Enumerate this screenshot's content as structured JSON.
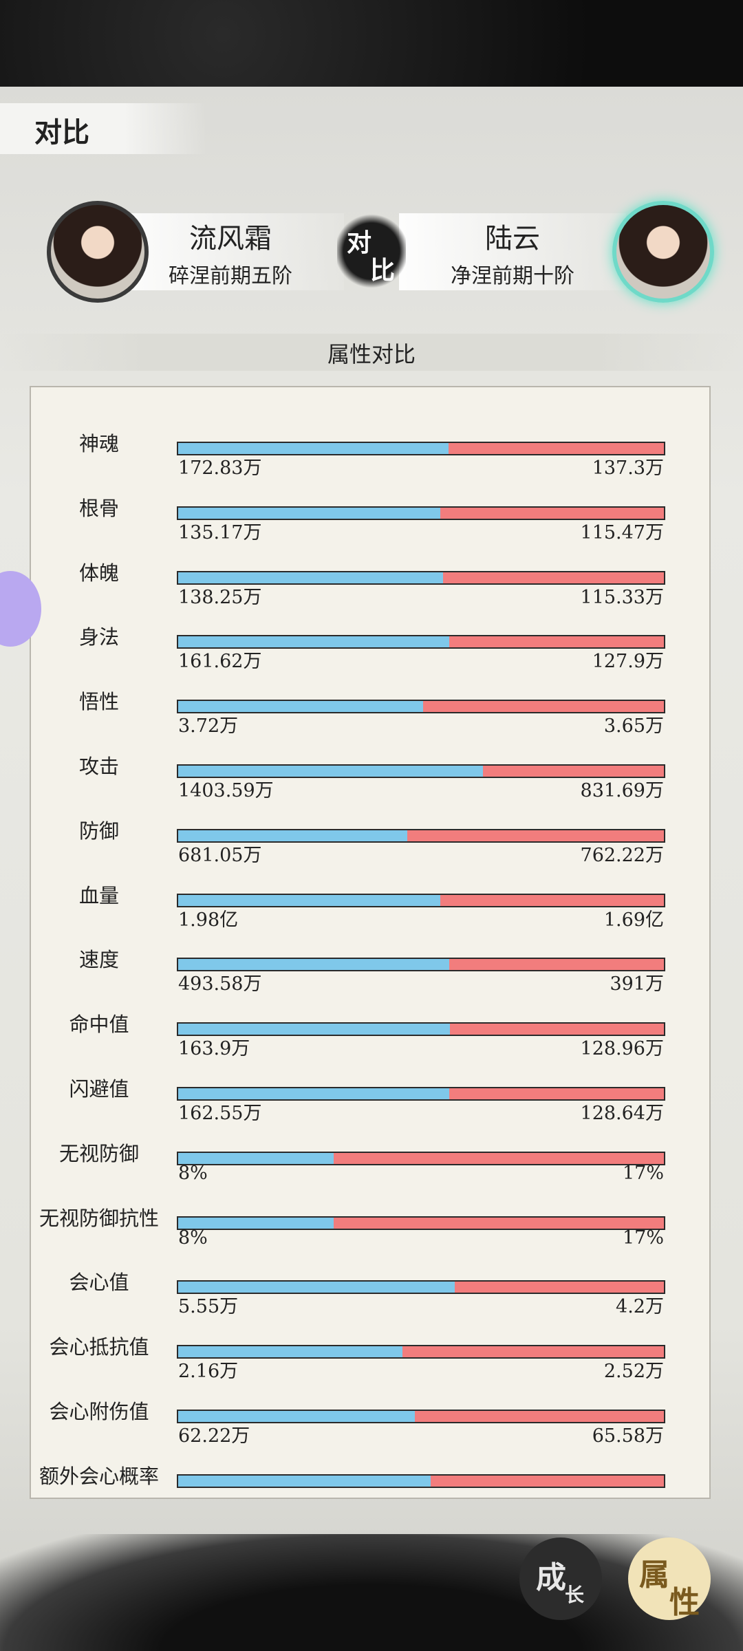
{
  "header": {
    "title": "对比"
  },
  "players": {
    "left": {
      "name": "流风霜",
      "rank": "碎涅前期五阶"
    },
    "badge": [
      "对",
      "比"
    ],
    "right": {
      "name": "陆云",
      "rank": "净涅前期十阶"
    }
  },
  "section_title": "属性对比",
  "rows": [
    {
      "label": "神魂",
      "left": "172.83万",
      "right": "137.3万"
    },
    {
      "label": "根骨",
      "left": "135.17万",
      "right": "115.47万"
    },
    {
      "label": "体魄",
      "left": "138.25万",
      "right": "115.33万"
    },
    {
      "label": "身法",
      "left": "161.62万",
      "right": "127.9万"
    },
    {
      "label": "悟性",
      "left": "3.72万",
      "right": "3.65万"
    },
    {
      "label": "攻击",
      "left": "1403.59万",
      "right": "831.69万"
    },
    {
      "label": "防御",
      "left": "681.05万",
      "right": "762.22万"
    },
    {
      "label": "血量",
      "left": "1.98亿",
      "right": "1.69亿"
    },
    {
      "label": "速度",
      "left": "493.58万",
      "right": "391万"
    },
    {
      "label": "命中值",
      "left": "163.9万",
      "right": "128.96万"
    },
    {
      "label": "闪避值",
      "left": "162.55万",
      "right": "128.64万"
    },
    {
      "label": "无视防御",
      "left": "8%",
      "right": "17%"
    },
    {
      "label": "无视防御抗性",
      "left": "8%",
      "right": "17%"
    },
    {
      "label": "会心值",
      "left": "5.55万",
      "right": "4.2万"
    },
    {
      "label": "会心抵抗值",
      "left": "2.16万",
      "right": "2.52万"
    },
    {
      "label": "会心附伤值",
      "left": "62.22万",
      "right": "65.58万"
    },
    {
      "label": "额外会心概率",
      "bar_share": 52
    }
  ],
  "buttons": [
    {
      "chars": [
        "成",
        "长"
      ]
    },
    {
      "chars": [
        "属",
        "性"
      ]
    }
  ]
}
